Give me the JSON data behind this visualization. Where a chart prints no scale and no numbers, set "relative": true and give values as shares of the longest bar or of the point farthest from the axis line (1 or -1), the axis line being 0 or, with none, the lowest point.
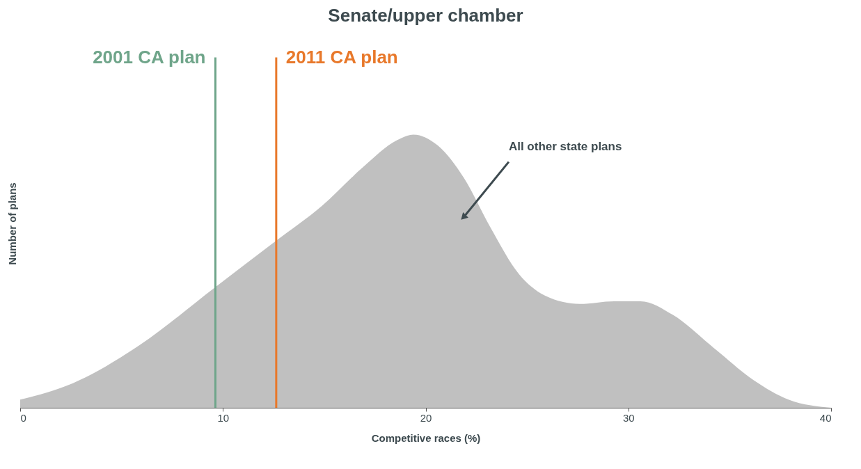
{
  "chart_data": {
    "type": "area",
    "title": "Senate/upper chamber",
    "xlabel": "Competitive races (%)",
    "ylabel": "Number of plans",
    "relative": true,
    "x": [
      0,
      2.6,
      5.9,
      9.6,
      12.6,
      14.9,
      16.9,
      18.6,
      19.4,
      20.6,
      21.9,
      23.2,
      24.6,
      25.9,
      27.6,
      29.3,
      30.6,
      32.2,
      34.2,
      36.2,
      37.9,
      40
    ],
    "series": [
      {
        "color": "#c0c0c0",
        "values": [
          0.03,
          0.09,
          0.23,
          0.44,
          0.61,
          0.74,
          0.88,
          0.98,
          1.0,
          0.96,
          0.84,
          0.66,
          0.49,
          0.41,
          0.38,
          0.39,
          0.39,
          0.34,
          0.22,
          0.1,
          0.03,
          0
        ]
      }
    ],
    "xlim": [
      0,
      40
    ],
    "xticks": [
      0,
      10,
      20,
      30,
      40
    ],
    "grid": false,
    "ref_lines": [
      {
        "axis": "x",
        "value": 9.63,
        "label": "2001 CA plan",
        "color": "#6fa58a"
      },
      {
        "axis": "x",
        "value": 12.63,
        "label": "2011 CA plan",
        "color": "#e8782a"
      }
    ],
    "annotations": [
      {
        "text": "All other state plans",
        "x": 21.9,
        "y": 0.7
      }
    ]
  }
}
